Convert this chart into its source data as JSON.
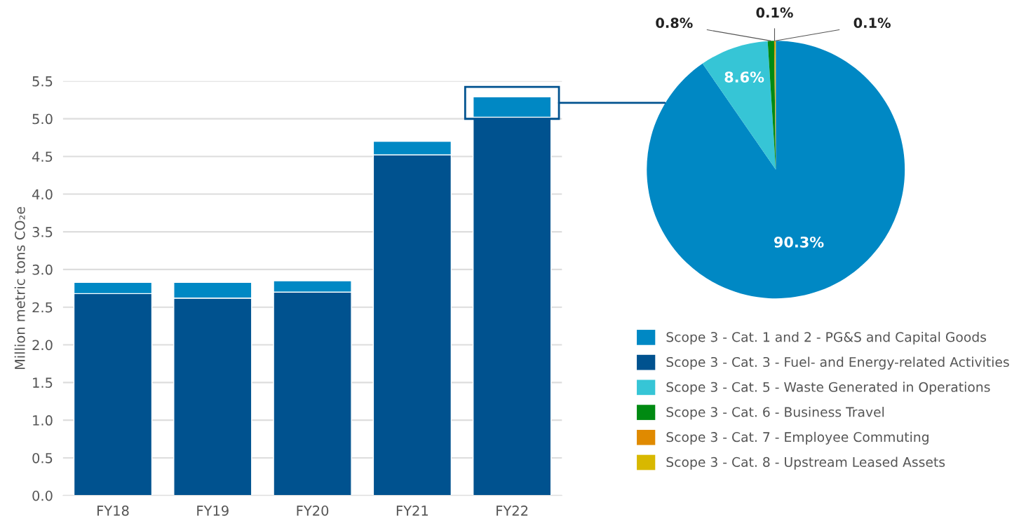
{
  "chart_data": [
    {
      "type": "bar",
      "stacked": true,
      "ylabel": "Million metric tons CO₂e",
      "categories": [
        "FY18",
        "FY19",
        "FY20",
        "FY21",
        "FY22"
      ],
      "series": [
        {
          "color": "#00528f",
          "values": [
            2.68,
            2.62,
            2.7,
            4.52,
            5.02
          ]
        },
        {
          "color": "#0088c4",
          "values": [
            0.15,
            0.21,
            0.15,
            0.18,
            0.27
          ]
        }
      ],
      "ylim": [
        0,
        5.5
      ],
      "yticks": [
        {
          "value": 0,
          "label": "0.0"
        },
        {
          "value": 0.5,
          "label": "0.5"
        },
        {
          "value": 1,
          "label": "1.0"
        },
        {
          "value": 1.5,
          "label": "1.5"
        },
        {
          "value": 2,
          "label": "2.0"
        },
        {
          "value": 2.5,
          "label": "2.5"
        },
        {
          "value": 3,
          "label": "3.0"
        },
        {
          "value": 3.5,
          "label": "3.5"
        },
        {
          "value": 4,
          "label": "4.0"
        },
        {
          "value": 4.5,
          "label": "4.5"
        },
        {
          "value": 5,
          "label": "5.0"
        },
        {
          "value": 5.5,
          "label": "5.5"
        }
      ],
      "grid": "y",
      "legend": false
    },
    {
      "type": "pie",
      "categories": [
        "Scope 3 - Cat. 1 and 2 - PG&S and Capital Goods",
        "Scope 3 - Cat. 3 - Fuel- and Energy-related Activities",
        "Scope 3 - Cat. 5 - Waste Generated in Operations",
        "Scope 3 - Cat. 6 - Business Travel",
        "Scope 3 - Cat. 7 - Employee Commuting",
        "Scope 3 - Cat. 8 - Upstream Leased Assets"
      ],
      "values": [
        90.3,
        0,
        8.6,
        0.8,
        0.1,
        0.1
      ],
      "colors": [
        "#0088c4",
        "#00528f",
        "#36c5d6",
        "#008a12",
        "#e08a00",
        "#d8b800"
      ],
      "value_labels": [
        "90.3%",
        null,
        "8.6%",
        "0.8%",
        "0.1%",
        "0.1%"
      ],
      "legend": "bottom"
    }
  ]
}
